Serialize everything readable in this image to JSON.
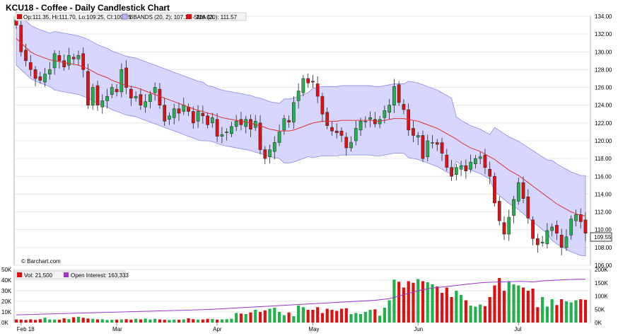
{
  "chart_data": {
    "type": "candlestick",
    "title": "KCU18 - Coffee - Daily Candlestick Chart",
    "last_close_label": "109.55",
    "credit": "© Barchart.com",
    "legend": {
      "ohlc": "Op:111.35, Hi:111.70, Lo:109.25, Cl:109.55",
      "bbands": "BBANDS (20, 2): 107.10 - 116.03",
      "sma": "SMA (20): 111.57"
    },
    "price_axis": {
      "min": 106,
      "max": 134,
      "ticks": [
        "106.00",
        "108.00",
        "110.00",
        "112.00",
        "114.00",
        "116.00",
        "118.00",
        "120.00",
        "122.00",
        "124.00",
        "126.00",
        "128.00",
        "130.00",
        "132.00",
        "134.00"
      ]
    },
    "x_axis_labels": [
      "Feb 18",
      "Mar",
      "Apr",
      "May",
      "Jun",
      "Jul"
    ],
    "x_axis_label_index": [
      1,
      21,
      42,
      62,
      84,
      105
    ],
    "series": [
      {
        "name": "Price",
        "closes": [
          133,
          130,
          129,
          128,
          127,
          126.8,
          127.5,
          128,
          129.8,
          129,
          128.3,
          129.6,
          129.2,
          129.6,
          128,
          124,
          126,
          124,
          124.5,
          125,
          126,
          125.5,
          128,
          126,
          124.8,
          125,
          124,
          124.4,
          125.2,
          126,
          124,
          122.2,
          122.8,
          123.6,
          123.1,
          124,
          123.3,
          122,
          123.3,
          122.8,
          121.8,
          122.6,
          120.5,
          120.7,
          121,
          121.6,
          122.2,
          121.8,
          122.4,
          121.3,
          122.2,
          119,
          118,
          119,
          119.8,
          121,
          122.5,
          122.1,
          124.3,
          125.6,
          127,
          126.5,
          126.6,
          125,
          123,
          121.7,
          121.1,
          120.9,
          120.6,
          119.2,
          119.8,
          121.4,
          122.2,
          122.2,
          122.6,
          121.9,
          122.4,
          123.4,
          124,
          126.1,
          124.3,
          123.5,
          121.2,
          120.6,
          120.6,
          118,
          120,
          119.8,
          119.6,
          118.6,
          117,
          116,
          117,
          117.2,
          116.6,
          117.6,
          118,
          118.2,
          117,
          116,
          113,
          111,
          109.5,
          111.4,
          113.4,
          115.3,
          113.5,
          111.3,
          109,
          108.3,
          108.6,
          109.9,
          110.3,
          109.6,
          108,
          109.2,
          111.2,
          111.7,
          110.9,
          109.6
        ]
      },
      {
        "name": "SMA (20)",
        "values": [
          131.5,
          131,
          130.5,
          130,
          129.7,
          129.5,
          129.3,
          129.1,
          129,
          128.9,
          128.8,
          128.7,
          128.6,
          128.5,
          128.3,
          128.1,
          127.8,
          127.5,
          127.3,
          127.1,
          126.8,
          126.6,
          126.4,
          126.2,
          126.1,
          126,
          125.8,
          125.6,
          125.4,
          125.2,
          125,
          124.8,
          124.6,
          124.4,
          124.2,
          124,
          123.8,
          123.6,
          123.4,
          123.3,
          123.1,
          123,
          122.8,
          122.6,
          122.5,
          122.4,
          122.3,
          122.2,
          122.1,
          122,
          121.8,
          121.7,
          121.5,
          121.3,
          121.2,
          121.1,
          121.1,
          121.1,
          121.2,
          121.4,
          121.6,
          121.8,
          122,
          122.1,
          122.2,
          122.2,
          122.2,
          122.2,
          122.3,
          122.3,
          122.3,
          122.3,
          122.3,
          122.3,
          122.3,
          122.2,
          122.2,
          122.3,
          122.4,
          122.5,
          122.5,
          122.5,
          122.4,
          122.3,
          122.2,
          122,
          121.8,
          121.6,
          121.4,
          121.1,
          120.8,
          120.5,
          120.2,
          119.8,
          119.5,
          119.2,
          119,
          118.8,
          118.5,
          118.2,
          117.9,
          117.5,
          117.1,
          116.7,
          116.4,
          116.1,
          115.7,
          115.3,
          114.9,
          114.5,
          114.1,
          113.7,
          113.3,
          112.9,
          112.6,
          112.3,
          112,
          111.8,
          111.6,
          111.57
        ]
      },
      {
        "name": "Volume",
        "values": [
          3000,
          2800,
          2500,
          3000,
          2500,
          3200,
          4500,
          2900,
          2800,
          2600,
          4000,
          3200,
          5000,
          5500,
          4500,
          3800,
          3500,
          3000,
          3200,
          2400,
          2600,
          2800,
          3000,
          3200,
          2800,
          3500,
          3000,
          3800,
          2900,
          3500,
          3000,
          2600,
          2400,
          2800,
          2600,
          3000,
          4000,
          3200,
          2800,
          2900,
          3500,
          3300,
          2800,
          3000,
          3200,
          3600,
          9000,
          8500,
          8000,
          9500,
          12000,
          10000,
          11500,
          13000,
          14000,
          10000,
          7000,
          9500,
          6000,
          16000,
          14500,
          12000,
          12000,
          14500,
          9000,
          13000,
          12000,
          11000,
          13000,
          13500,
          8000,
          9000,
          8000,
          10000,
          12000,
          12500,
          6500,
          14000,
          21000,
          40500,
          38500,
          33000,
          39000,
          37500,
          41000,
          39000,
          38000,
          36000,
          34000,
          28000,
          33000,
          24000,
          30000,
          26000,
          21000,
          16000,
          15000,
          17000,
          15500,
          24000,
          35000,
          42000,
          30000,
          39000,
          36000,
          35000,
          33000,
          30000,
          32000,
          14500,
          24000,
          15000,
          22000,
          16500,
          22000,
          20000,
          19000,
          21000,
          22000,
          21500
        ]
      },
      {
        "name": "Open Interest",
        "values": [
          29000,
          29500,
          30000,
          30500,
          31000,
          31500,
          32000,
          32500,
          33000,
          33500,
          34000,
          34500,
          35000,
          35500,
          36000,
          36500,
          37000,
          37500,
          38000,
          38500,
          39000,
          39500,
          40000,
          40500,
          41000,
          41500,
          42000,
          42500,
          43000,
          43500,
          44000,
          44500,
          45000,
          45500,
          46000,
          46500,
          47000,
          47500,
          48000,
          48500,
          49000,
          50000,
          51000,
          52000,
          53000,
          54000,
          55000,
          56000,
          57000,
          58000,
          59000,
          60000,
          61000,
          62000,
          63000,
          64000,
          65000,
          66000,
          67000,
          68000,
          69000,
          70000,
          71000,
          72000,
          73000,
          74000,
          75000,
          76000,
          77000,
          78000,
          79000,
          80000,
          81000,
          82000,
          83000,
          84000,
          86000,
          88000,
          90000,
          95000,
          100000,
          105000,
          110000,
          115000,
          120000,
          124000,
          127000,
          130000,
          132000,
          134000,
          136000,
          138000,
          140000,
          142000,
          144000,
          146000,
          148000,
          150000,
          151000,
          152000,
          152500,
          153000,
          153500,
          154000,
          154500,
          155000,
          155000,
          154000,
          153000,
          155000,
          157000,
          158000,
          159000,
          160000,
          161000,
          162000,
          162500,
          163000,
          163333,
          163333
        ]
      }
    ],
    "volume_axis": {
      "left_ticks": [
        "0K",
        "10K",
        "20K",
        "30K",
        "40K",
        "50K"
      ],
      "right_ticks": [
        "0K",
        "50K",
        "100K",
        "150K",
        "200K"
      ]
    },
    "volume_legend": {
      "vol": "Vol: 21,500",
      "oi": "Open Interest: 163,333"
    },
    "colors": {
      "up": "#22b14c",
      "down": "#dd1111",
      "sma": "#e03030",
      "band_fill": "#ccccff",
      "band_line": "#8a8ae0",
      "oi": "#9933cc",
      "grid": "#e6e6e6"
    }
  }
}
